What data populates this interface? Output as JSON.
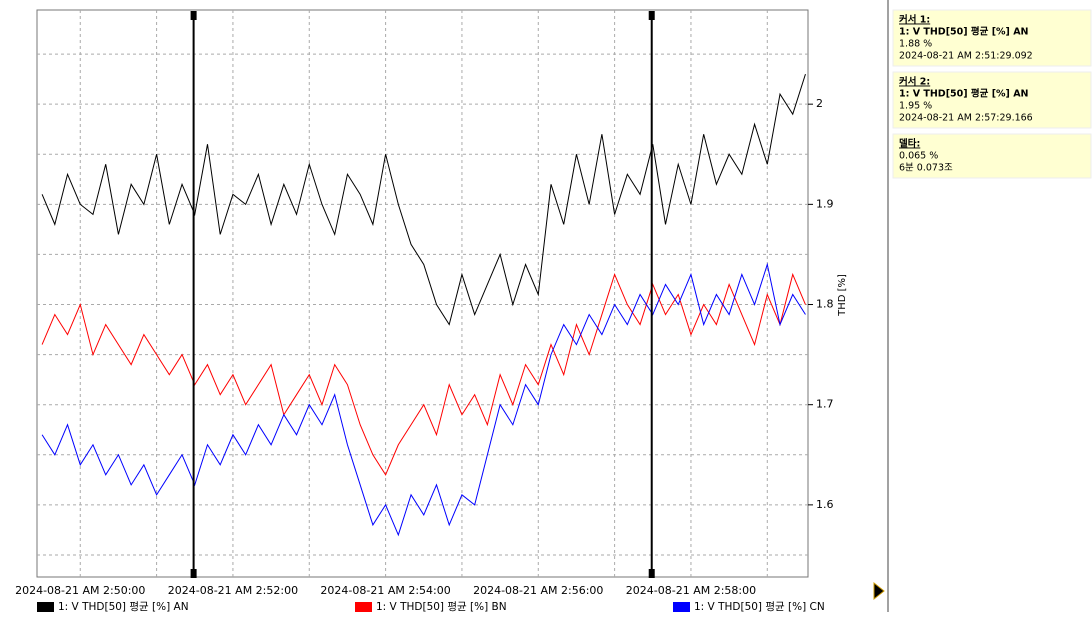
{
  "chart_data": {
    "type": "line",
    "ylabel": "THD [%]",
    "x": [
      "2024-08-21 02:49:30",
      "2024-08-21 02:49:40",
      "2024-08-21 02:49:50",
      "2024-08-21 02:50:00",
      "2024-08-21 02:50:10",
      "2024-08-21 02:50:20",
      "2024-08-21 02:50:30",
      "2024-08-21 02:50:40",
      "2024-08-21 02:50:50",
      "2024-08-21 02:51:00",
      "2024-08-21 02:51:10",
      "2024-08-21 02:51:20",
      "2024-08-21 02:51:30",
      "2024-08-21 02:51:40",
      "2024-08-21 02:51:50",
      "2024-08-21 02:52:00",
      "2024-08-21 02:52:10",
      "2024-08-21 02:52:20",
      "2024-08-21 02:52:30",
      "2024-08-21 02:52:40",
      "2024-08-21 02:52:50",
      "2024-08-21 02:53:00",
      "2024-08-21 02:53:10",
      "2024-08-21 02:53:20",
      "2024-08-21 02:53:30",
      "2024-08-21 02:53:40",
      "2024-08-21 02:53:50",
      "2024-08-21 02:54:00",
      "2024-08-21 02:54:10",
      "2024-08-21 02:54:20",
      "2024-08-21 02:54:30",
      "2024-08-21 02:54:40",
      "2024-08-21 02:54:50",
      "2024-08-21 02:55:00",
      "2024-08-21 02:55:10",
      "2024-08-21 02:55:20",
      "2024-08-21 02:55:30",
      "2024-08-21 02:55:40",
      "2024-08-21 02:55:50",
      "2024-08-21 02:56:00",
      "2024-08-21 02:56:10",
      "2024-08-21 02:56:20",
      "2024-08-21 02:56:30",
      "2024-08-21 02:56:40",
      "2024-08-21 02:56:50",
      "2024-08-21 02:57:00",
      "2024-08-21 02:57:10",
      "2024-08-21 02:57:20",
      "2024-08-21 02:57:30",
      "2024-08-21 02:57:40",
      "2024-08-21 02:57:50",
      "2024-08-21 02:58:00",
      "2024-08-21 02:58:10",
      "2024-08-21 02:58:20",
      "2024-08-21 02:58:30",
      "2024-08-21 02:58:40",
      "2024-08-21 02:58:50",
      "2024-08-21 02:59:00",
      "2024-08-21 02:59:10",
      "2024-08-21 02:59:20",
      "2024-08-21 02:59:30"
    ],
    "series": [
      {
        "name": "1: V THD[50] 평균 [%] AN",
        "color": "#000000",
        "values": [
          1.91,
          1.88,
          1.93,
          1.9,
          1.89,
          1.94,
          1.87,
          1.92,
          1.9,
          1.95,
          1.88,
          1.92,
          1.89,
          1.96,
          1.87,
          1.91,
          1.9,
          1.93,
          1.88,
          1.92,
          1.89,
          1.94,
          1.9,
          1.87,
          1.93,
          1.91,
          1.88,
          1.95,
          1.9,
          1.86,
          1.84,
          1.8,
          1.78,
          1.83,
          1.79,
          1.82,
          1.85,
          1.8,
          1.84,
          1.81,
          1.92,
          1.88,
          1.95,
          1.9,
          1.97,
          1.89,
          1.93,
          1.91,
          1.96,
          1.88,
          1.94,
          1.9,
          1.97,
          1.92,
          1.95,
          1.93,
          1.98,
          1.94,
          2.01,
          1.99,
          2.03
        ]
      },
      {
        "name": "1: V THD[50] 평균 [%] BN",
        "color": "#ff0000",
        "values": [
          1.76,
          1.79,
          1.77,
          1.8,
          1.75,
          1.78,
          1.76,
          1.74,
          1.77,
          1.75,
          1.73,
          1.75,
          1.72,
          1.74,
          1.71,
          1.73,
          1.7,
          1.72,
          1.74,
          1.69,
          1.71,
          1.73,
          1.7,
          1.74,
          1.72,
          1.68,
          1.65,
          1.63,
          1.66,
          1.68,
          1.7,
          1.67,
          1.72,
          1.69,
          1.71,
          1.68,
          1.73,
          1.7,
          1.74,
          1.72,
          1.76,
          1.73,
          1.78,
          1.75,
          1.79,
          1.83,
          1.8,
          1.78,
          1.82,
          1.79,
          1.81,
          1.77,
          1.8,
          1.78,
          1.82,
          1.79,
          1.76,
          1.81,
          1.78,
          1.83,
          1.8
        ]
      },
      {
        "name": "1: V THD[50] 평균 [%] CN",
        "color": "#0000ff",
        "values": [
          1.67,
          1.65,
          1.68,
          1.64,
          1.66,
          1.63,
          1.65,
          1.62,
          1.64,
          1.61,
          1.63,
          1.65,
          1.62,
          1.66,
          1.64,
          1.67,
          1.65,
          1.68,
          1.66,
          1.69,
          1.67,
          1.7,
          1.68,
          1.71,
          1.66,
          1.62,
          1.58,
          1.6,
          1.57,
          1.61,
          1.59,
          1.62,
          1.58,
          1.61,
          1.6,
          1.65,
          1.7,
          1.68,
          1.72,
          1.7,
          1.75,
          1.78,
          1.76,
          1.79,
          1.77,
          1.8,
          1.78,
          1.81,
          1.79,
          1.82,
          1.8,
          1.83,
          1.78,
          1.81,
          1.79,
          1.83,
          1.8,
          1.84,
          1.78,
          1.81,
          1.79
        ]
      }
    ],
    "xlim": [
      "2024-08-21 02:49:26",
      "2024-08-21 02:59:32"
    ],
    "xticks": [
      {
        "value": "2024-08-21 02:50:00",
        "label": "2024-08-21 AM 2:50:00"
      },
      {
        "value": "2024-08-21 02:52:00",
        "label": "2024-08-21 AM 2:52:00"
      },
      {
        "value": "2024-08-21 02:54:00",
        "label": "2024-08-21 AM 2:54:00"
      },
      {
        "value": "2024-08-21 02:56:00",
        "label": "2024-08-21 AM 2:56:00"
      },
      {
        "value": "2024-08-21 02:58:00",
        "label": "2024-08-21 AM 2:58:00"
      }
    ],
    "minor_xticks": [
      "2024-08-21 02:51:00",
      "2024-08-21 02:53:00",
      "2024-08-21 02:55:00",
      "2024-08-21 02:57:00",
      "2024-08-21 02:59:00"
    ],
    "ylim": [
      1.528,
      2.094
    ],
    "yticks": [
      1.6,
      1.7,
      1.8,
      1.9,
      2.0
    ],
    "minor_yticks": [
      1.55,
      1.65,
      1.75,
      1.85,
      1.95,
      2.05
    ],
    "grid": true,
    "cursors": [
      {
        "title": "커서 1:",
        "series": "1: V THD[50] 평균 [%] AN",
        "value": "1.88 %",
        "time_label": "2024-08-21 AM 2:51:29.092",
        "time": "2024-08-21 02:51:29.092"
      },
      {
        "title": "커서 2:",
        "series": "1: V THD[50] 평균 [%] AN",
        "value": "1.95 %",
        "time_label": "2024-08-21 AM 2:57:29.166",
        "time": "2024-08-21 02:57:29.166"
      }
    ],
    "delta": {
      "title": "델타:",
      "value": "0.065 %",
      "time": "6분 0.073조"
    }
  }
}
